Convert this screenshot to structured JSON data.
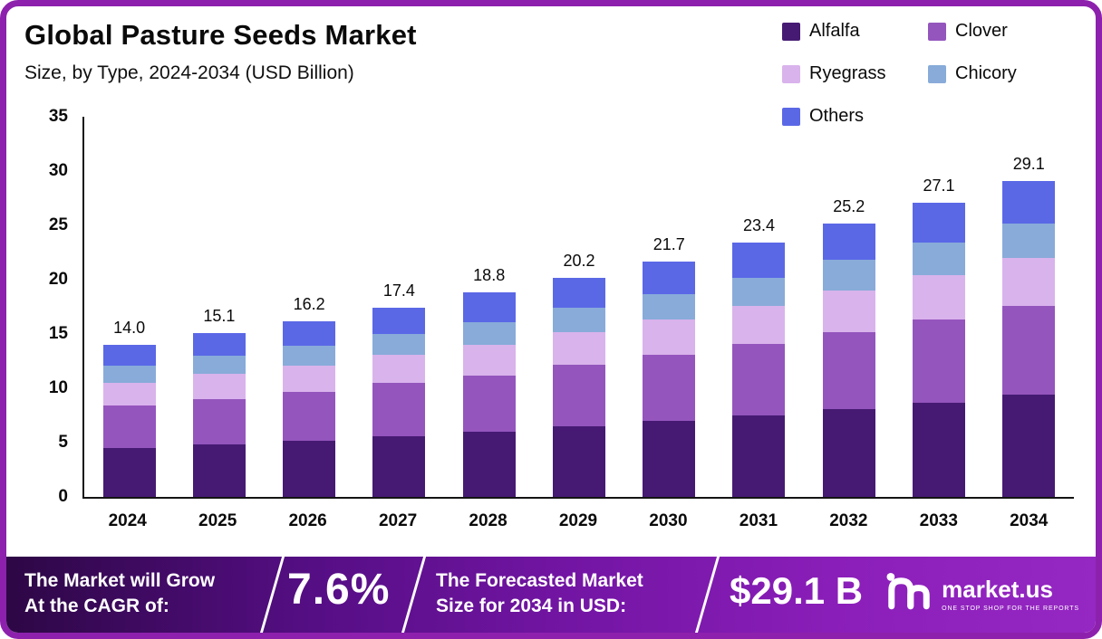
{
  "header": {
    "title": "Global Pasture Seeds Market",
    "subtitle": "Size, by Type, 2024-2034 (USD Billion)"
  },
  "banner": {
    "cagr_label_line1": "The Market will Grow",
    "cagr_label_line2": "At the CAGR of:",
    "cagr_value": "7.6%",
    "forecast_label_line1": "The Forecasted Market",
    "forecast_label_line2": "Size for 2034 in USD:",
    "forecast_value": "$29.1 B",
    "brand_name": "market.us",
    "brand_tagline": "ONE STOP SHOP FOR THE REPORTS"
  },
  "chart_data": {
    "type": "bar",
    "stacked": true,
    "title": "Global Pasture Seeds Market Size, by Type, 2024-2034 (USD Billion)",
    "xlabel": "",
    "ylabel": "USD Billion",
    "ylim": [
      0,
      35
    ],
    "yticks": [
      0,
      5,
      10,
      15,
      20,
      25,
      30,
      35
    ],
    "grid": false,
    "legend_position": "top-right",
    "categories": [
      "2024",
      "2025",
      "2026",
      "2027",
      "2028",
      "2029",
      "2030",
      "2031",
      "2032",
      "2033",
      "2034"
    ],
    "totals": [
      14.0,
      15.1,
      16.2,
      17.4,
      18.8,
      20.2,
      21.7,
      23.4,
      25.2,
      27.1,
      29.1
    ],
    "series": [
      {
        "name": "Alfalfa",
        "color": "#461a73",
        "values": [
          4.5,
          4.8,
          5.2,
          5.6,
          6.0,
          6.5,
          7.0,
          7.5,
          8.1,
          8.7,
          9.4
        ]
      },
      {
        "name": "Clover",
        "color": "#9455bd",
        "values": [
          3.9,
          4.2,
          4.5,
          4.9,
          5.2,
          5.7,
          6.1,
          6.6,
          7.1,
          7.6,
          8.2
        ]
      },
      {
        "name": "Ryegrass",
        "color": "#d9b3ec",
        "values": [
          2.1,
          2.3,
          2.4,
          2.6,
          2.8,
          3.0,
          3.2,
          3.5,
          3.8,
          4.1,
          4.4
        ]
      },
      {
        "name": "Chicory",
        "color": "#88abd9",
        "values": [
          1.6,
          1.7,
          1.8,
          1.9,
          2.1,
          2.2,
          2.4,
          2.6,
          2.8,
          3.0,
          3.2
        ]
      },
      {
        "name": "Others",
        "color": "#5a68e6",
        "values": [
          1.9,
          2.1,
          2.3,
          2.4,
          2.7,
          2.8,
          3.0,
          3.2,
          3.4,
          3.7,
          3.9
        ]
      }
    ]
  }
}
